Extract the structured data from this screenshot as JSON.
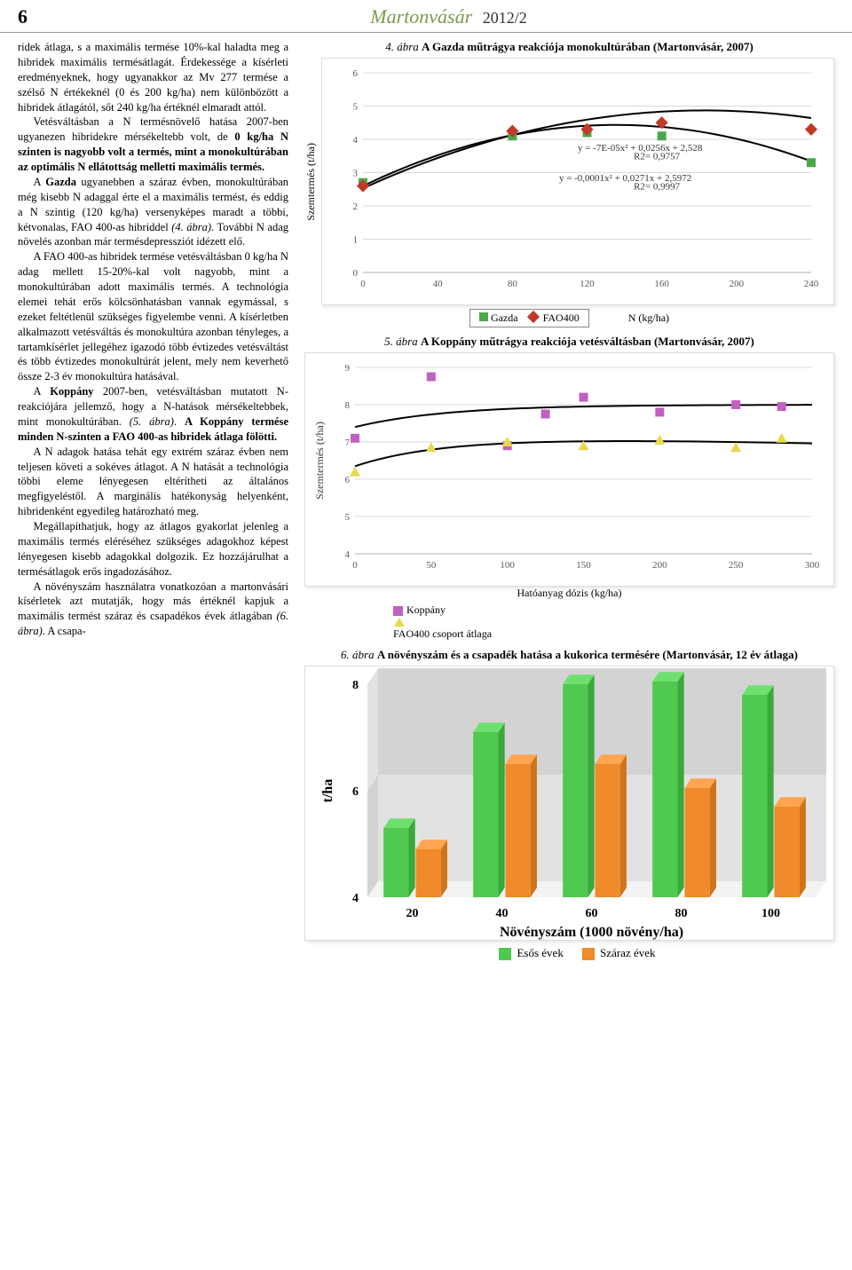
{
  "header": {
    "page_number": "6",
    "journal_name": "Martonvásár",
    "issue": "2012/2"
  },
  "body_text": {
    "p1": "ridek átlaga, s a maximális termése 10%-kal haladta meg a hibridek maximális termésátlagát. Érdekessége a kísérleti eredményeknek, hogy ugyanakkor az Mv 277 termése a szélső N értékeknél (0 és 200 kg/ha) nem különbözött a hibridek átlagától, sőt 240 kg/ha értéknél elmaradt attól.",
    "p2a": "Vetésváltásban a N termésnövelő hatása 2007-ben ugyanezen hibridekre mérsékeltebb volt, de ",
    "p2b": "0 kg/ha N szinten is nagyobb volt a termés, mint a monokultúrában az optimális N ellátottság melletti maximális termés.",
    "p3a": "A ",
    "p3b": "Gazda",
    "p3c": " ugyanebben a száraz évben, monokultúrában még kisebb N adaggal érte el a maximális termést, és eddig a N szintig (120 kg/ha) versenyképes maradt a többi, kétvonalas, FAO 400-as hibriddel ",
    "p3d": "(4. ábra)",
    "p3e": ". További N adag növelés azonban már termésdepressziót idézett elő.",
    "p4": "A FAO 400-as hibridek termése vetésváltásban 0 kg/ha N adag mellett 15-20%-kal volt nagyobb, mint a monokultúrában adott maximális termés. A technológia elemei tehát erős kölcsönhatásban vannak egymással, s ezeket feltétlenül szükséges figyelembe venni. A kísérletben alkalmazott vetésváltás és monokultúra azonban tényleges, a tartamkísérlet jellegéhez igazodó több évtizedes vetésváltást és több évtizedes monokultúrát jelent, mely nem keverhető össze 2-3 év monokultúra hatásával.",
    "p5a": "A ",
    "p5b": "Koppány",
    "p5c": " 2007-ben, vetésváltásban mutatott N-reakciójára jellemző, hogy a N-hatások mérsékeltebbek, mint monokultúrában. ",
    "p5d": "(5. ábra)",
    "p5e": ". ",
    "p5f": "A Koppány termése minden N-szinten a FAO 400-as hibridek átlaga fölötti.",
    "p6": "A N adagok hatása tehát egy extrém száraz évben nem teljesen követi a sokéves átlagot. A N hatását a technológia többi eleme lényegesen eltérítheti az általános megfigyeléstől. A marginális hatékonyság helyenként, hibridenként egyedileg határozható meg.",
    "p7": "Megállapíthatjuk, hogy az átlagos gyakorlat jelenleg a maximális termés eléréséhez szükséges adagokhoz képest lényegesen kisebb adagokkal dolgozik. Ez hozzájárulhat a termésátlagok erős ingadozásához.",
    "p8a": "A növényszám használatra vonatkozóan a martonvásári kísérletek azt mutatják, hogy más értéknél kapjuk a maximális termést száraz és csapadékos évek átlagában ",
    "p8b": "(6. ábra)",
    "p8c": ". A csapa-"
  },
  "fig4": {
    "caption_prefix": "4. ábra ",
    "caption": "A Gazda műtrágya reakciója monokultúrában (Martonvásár, 2007)",
    "type": "scatter-line",
    "y_label": "Szemtermés (t/ha)",
    "x_label": "N (kg/ha)",
    "xlim": [
      0,
      240
    ],
    "xtick_step": 40,
    "ylim": [
      0,
      6
    ],
    "ytick_step": 1,
    "grid_color": "#d9d9d9",
    "border_color": "#b0b0b0",
    "background_color": "#ffffff",
    "plot_area_bg": "#ffffff",
    "tick_fontsize": 11,
    "label_fontsize": 12,
    "eq1": "y = -7E-05x² + 0,0256x + 2,528",
    "eq1_r2": "R2= 0,9757",
    "eq2": "y = -0,0001x² + 0,0271x + 2,5972",
    "eq2_r2": "R2= 0,9997",
    "series": {
      "gazda": {
        "label": "Gazda",
        "marker": "square",
        "color": "#4aa84a",
        "x": [
          0,
          80,
          120,
          160,
          240
        ],
        "y": [
          2.7,
          4.1,
          4.2,
          4.1,
          3.3
        ]
      },
      "fao400": {
        "label": "FAO400",
        "marker": "diamond",
        "color": "#c0392b",
        "x": [
          0,
          80,
          120,
          160,
          240
        ],
        "y": [
          2.6,
          4.25,
          4.3,
          4.5,
          4.3
        ]
      }
    },
    "trend_color": "#000000",
    "trend_width": 2
  },
  "fig5": {
    "caption_prefix": "5. ábra ",
    "caption": "A Koppány műtrágya reakciója vetésváltásban (Martonvásár, 2007)",
    "type": "scatter-line",
    "y_label_rotated": "Szemtermés (t/ha)",
    "x_label": "Hatóanyag dózis (kg/ha)",
    "xlim": [
      0,
      300
    ],
    "xtick_step": 50,
    "ylim": [
      4,
      9
    ],
    "ytick_step": 1,
    "grid_color": "#d9d9d9",
    "border_color": "#b0b0b0",
    "background_color": "#ffffff",
    "tick_fontsize": 11,
    "series": {
      "koppany": {
        "label": "Koppány",
        "marker": "square",
        "color": "#c060c0",
        "x": [
          0,
          50,
          100,
          125,
          150,
          200,
          250,
          280
        ],
        "y": [
          7.1,
          8.75,
          6.9,
          7.75,
          8.2,
          7.8,
          8.0,
          7.95
        ]
      },
      "fao400": {
        "label": "FAO400 csoport átlaga",
        "marker": "triangle",
        "color": "#e8d94a",
        "x": [
          0,
          50,
          100,
          150,
          200,
          250,
          280
        ],
        "y": [
          6.2,
          6.85,
          7.0,
          6.9,
          7.05,
          6.85,
          7.1
        ]
      }
    },
    "trend_color": "#000000",
    "trend_width": 2
  },
  "fig6": {
    "caption_prefix": "6. ábra ",
    "caption": "A növényszám és a csapadék hatása a kukorica termésére (Martonvásár, 12 év átlaga)",
    "type": "bar3d",
    "y_label": "t/ha",
    "x_label": "Növényszám (1000 növény/ha)",
    "categories": [
      "20",
      "40",
      "60",
      "80",
      "100"
    ],
    "ylim": [
      4,
      8
    ],
    "ytick_step": 2,
    "series": {
      "wet": {
        "label": "Esős évek",
        "color": "#4fc94f",
        "color_side": "#3aa83a",
        "color_top": "#6fe06f",
        "values": [
          5.3,
          7.1,
          8.0,
          8.05,
          7.8
        ]
      },
      "dry": {
        "label": "Száraz évek",
        "color": "#f08a2a",
        "color_side": "#d07418",
        "color_top": "#ffa550",
        "values": [
          4.9,
          6.5,
          6.5,
          6.05,
          5.7
        ]
      }
    },
    "floor_color_1": "#f3f3f3",
    "floor_color_2": "#e6e6e6",
    "wall_color_1": "#e2e2e2",
    "wall_color_2": "#d3d3d3",
    "tick_fontsize": 14,
    "axis_label_fontsize": 16
  }
}
